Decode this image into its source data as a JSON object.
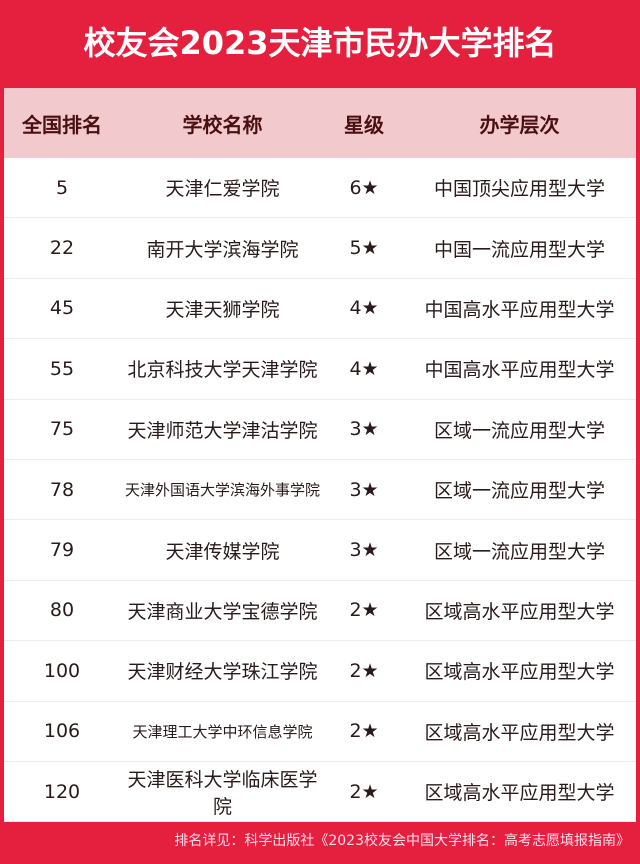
{
  "title": "校友会2023天津市民办大学排名",
  "headers": [
    "全国排名",
    "学校名称",
    "星级",
    "办学层次"
  ],
  "rows": [
    [
      "5",
      "天津仁爱学院",
      "6★",
      "中国顶尖应用型大学"
    ],
    [
      "22",
      "南开大学滨海学院",
      "5★",
      "中国一流应用型大学"
    ],
    [
      "45",
      "天津天狮学院",
      "4★",
      "中国高水平应用型大学"
    ],
    [
      "55",
      "北京科技大学天津学院",
      "4★",
      "中国高水平应用型大学"
    ],
    [
      "75",
      "天津师范大学津沽学院",
      "3★",
      "区域一流应用型大学"
    ],
    [
      "78",
      "天津外国语大学滨海外事学院",
      "3★",
      "区域一流应用型大学"
    ],
    [
      "79",
      "天津传媒学院",
      "3★",
      "区域一流应用型大学"
    ],
    [
      "80",
      "天津商业大学宝德学院",
      "2★",
      "区域高水平应用型大学"
    ],
    [
      "100",
      "天津财经大学珠江学院",
      "2★",
      "区域高水平应用型大学"
    ],
    [
      "106",
      "天津理工大学中环信息学院",
      "2★",
      "区域高水平应用型大学"
    ],
    [
      "120",
      "天津医科大学临床医学院",
      "2★",
      "区域高水平应用型大学"
    ]
  ],
  "footer": "排名详见：科学出版社《2023校友会中国大学排名：高考志愿填报指南》",
  "colors": {
    "background": "#e5203e",
    "header_row": "#f2c9cc"
  }
}
